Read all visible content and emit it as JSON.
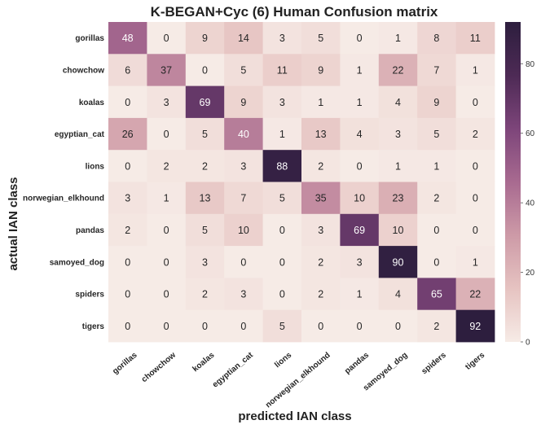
{
  "chart_data": {
    "type": "heatmap",
    "title": "K-BEGAN+Cyc (6) Human Confusion matrix",
    "xlabel": "predicted IAN class",
    "ylabel": "actual IAN class",
    "rows": [
      "gorillas",
      "chowchow",
      "koalas",
      "egyptian_cat",
      "lions",
      "norwegian_elkhound",
      "pandas",
      "samoyed_dog",
      "spiders",
      "tigers"
    ],
    "columns": [
      "gorillas",
      "chowchow",
      "koalas",
      "egyptian_cat",
      "lions",
      "norwegian_elkhound",
      "pandas",
      "samoyed_dog",
      "spiders",
      "tigers"
    ],
    "values": [
      [
        48,
        0,
        9,
        14,
        3,
        5,
        0,
        1,
        8,
        11
      ],
      [
        6,
        37,
        0,
        5,
        11,
        9,
        1,
        22,
        7,
        1
      ],
      [
        0,
        3,
        69,
        9,
        3,
        1,
        1,
        4,
        9,
        0
      ],
      [
        26,
        0,
        5,
        40,
        1,
        13,
        4,
        3,
        5,
        2
      ],
      [
        0,
        2,
        2,
        3,
        88,
        2,
        0,
        1,
        1,
        0
      ],
      [
        3,
        1,
        13,
        7,
        5,
        35,
        10,
        23,
        2,
        0
      ],
      [
        2,
        0,
        5,
        10,
        0,
        3,
        69,
        10,
        0,
        0
      ],
      [
        0,
        0,
        3,
        0,
        0,
        2,
        3,
        90,
        0,
        1
      ],
      [
        0,
        0,
        2,
        3,
        0,
        2,
        1,
        4,
        65,
        22
      ],
      [
        0,
        0,
        0,
        0,
        5,
        0,
        0,
        0,
        2,
        92
      ]
    ],
    "colorbar": {
      "min": 0,
      "max": 92,
      "ticks": [
        0,
        20,
        40,
        60,
        80
      ]
    },
    "colormap": [
      "#f6ebe6",
      "#e6c3c1",
      "#cd9aa7",
      "#a86a90",
      "#7d457a",
      "#4d2a55",
      "#2d1e3e"
    ]
  }
}
